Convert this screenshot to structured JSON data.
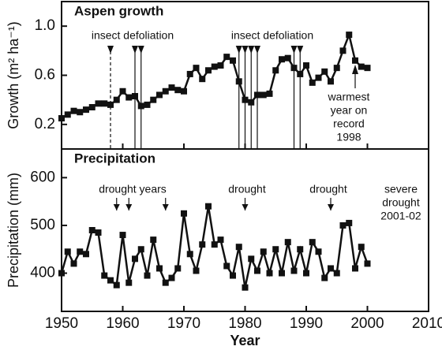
{
  "chart_data": [
    {
      "type": "line",
      "title": "Aspen growth",
      "ylabel": "Growth (m² ha⁻¹)",
      "x": [
        1950,
        1951,
        1952,
        1953,
        1954,
        1955,
        1956,
        1957,
        1958,
        1959,
        1960,
        1961,
        1962,
        1963,
        1964,
        1965,
        1966,
        1967,
        1968,
        1969,
        1970,
        1971,
        1972,
        1973,
        1974,
        1975,
        1976,
        1977,
        1978,
        1979,
        1980,
        1981,
        1982,
        1983,
        1984,
        1985,
        1986,
        1987,
        1988,
        1989,
        1990,
        1991,
        1992,
        1993,
        1994,
        1995,
        1996,
        1997,
        1998,
        1999,
        2000
      ],
      "series": [
        {
          "color": "#111111",
          "values": [
            0.25,
            0.28,
            0.31,
            0.3,
            0.32,
            0.34,
            0.37,
            0.37,
            0.36,
            0.4,
            0.47,
            0.42,
            0.43,
            0.35,
            0.36,
            0.4,
            0.44,
            0.47,
            0.5,
            0.48,
            0.47,
            0.61,
            0.66,
            0.57,
            0.64,
            0.67,
            0.68,
            0.75,
            0.72,
            0.55,
            0.4,
            0.38,
            0.44,
            0.44,
            0.45,
            0.64,
            0.73,
            0.74,
            0.66,
            0.61,
            0.68,
            0.54,
            0.58,
            0.63,
            0.55,
            0.66,
            0.8,
            0.93,
            0.72,
            0.67,
            0.66
          ]
        }
      ],
      "xlim": [
        1950,
        2010
      ],
      "xticks": [
        1950,
        1960,
        1970,
        1980,
        1990,
        2000,
        2010
      ],
      "ylim": [
        0,
        1.2
      ],
      "yticks": [
        0.2,
        0.6,
        {
          "value": 1.0,
          "label": "1.0"
        }
      ],
      "event_label": "insect defoliation",
      "defoliation_years": [
        1958,
        1962,
        1963,
        1979,
        1980,
        1981,
        1982,
        1988,
        1989
      ],
      "note": [
        "warmest",
        "year on",
        "record",
        "1998"
      ],
      "note_year": 1998
    },
    {
      "type": "line",
      "title": "Precipitation",
      "ylabel": "Precipitation (mm)",
      "xlabel": "Year",
      "x": [
        1950,
        1951,
        1952,
        1953,
        1954,
        1955,
        1956,
        1957,
        1958,
        1959,
        1960,
        1961,
        1962,
        1963,
        1964,
        1965,
        1966,
        1967,
        1968,
        1969,
        1970,
        1971,
        1972,
        1973,
        1974,
        1975,
        1976,
        1977,
        1978,
        1979,
        1980,
        1981,
        1982,
        1983,
        1984,
        1985,
        1986,
        1987,
        1988,
        1989,
        1990,
        1991,
        1992,
        1993,
        1994,
        1995,
        1996,
        1997,
        1998,
        1999,
        2000
      ],
      "series": [
        {
          "color": "#111111",
          "values": [
            400,
            445,
            420,
            445,
            440,
            490,
            485,
            395,
            385,
            375,
            480,
            380,
            430,
            450,
            395,
            470,
            410,
            380,
            390,
            410,
            525,
            440,
            405,
            460,
            540,
            460,
            470,
            415,
            395,
            455,
            370,
            430,
            405,
            445,
            400,
            450,
            400,
            465,
            405,
            450,
            400,
            465,
            445,
            390,
            410,
            400,
            500,
            505,
            410,
            455,
            420
          ]
        }
      ],
      "xlim": [
        1950,
        2010
      ],
      "xticks": [
        1950,
        1960,
        1970,
        1980,
        1990,
        2000,
        2010
      ],
      "ylim": [
        320,
        660
      ],
      "yticks": [
        400,
        500,
        600
      ],
      "drought_labels": [
        "drought years",
        "drought",
        "drought"
      ],
      "drought_years": [
        1959,
        1961,
        1967,
        1980,
        1994
      ],
      "note": [
        "severe",
        "drought",
        "2001-02"
      ]
    }
  ]
}
